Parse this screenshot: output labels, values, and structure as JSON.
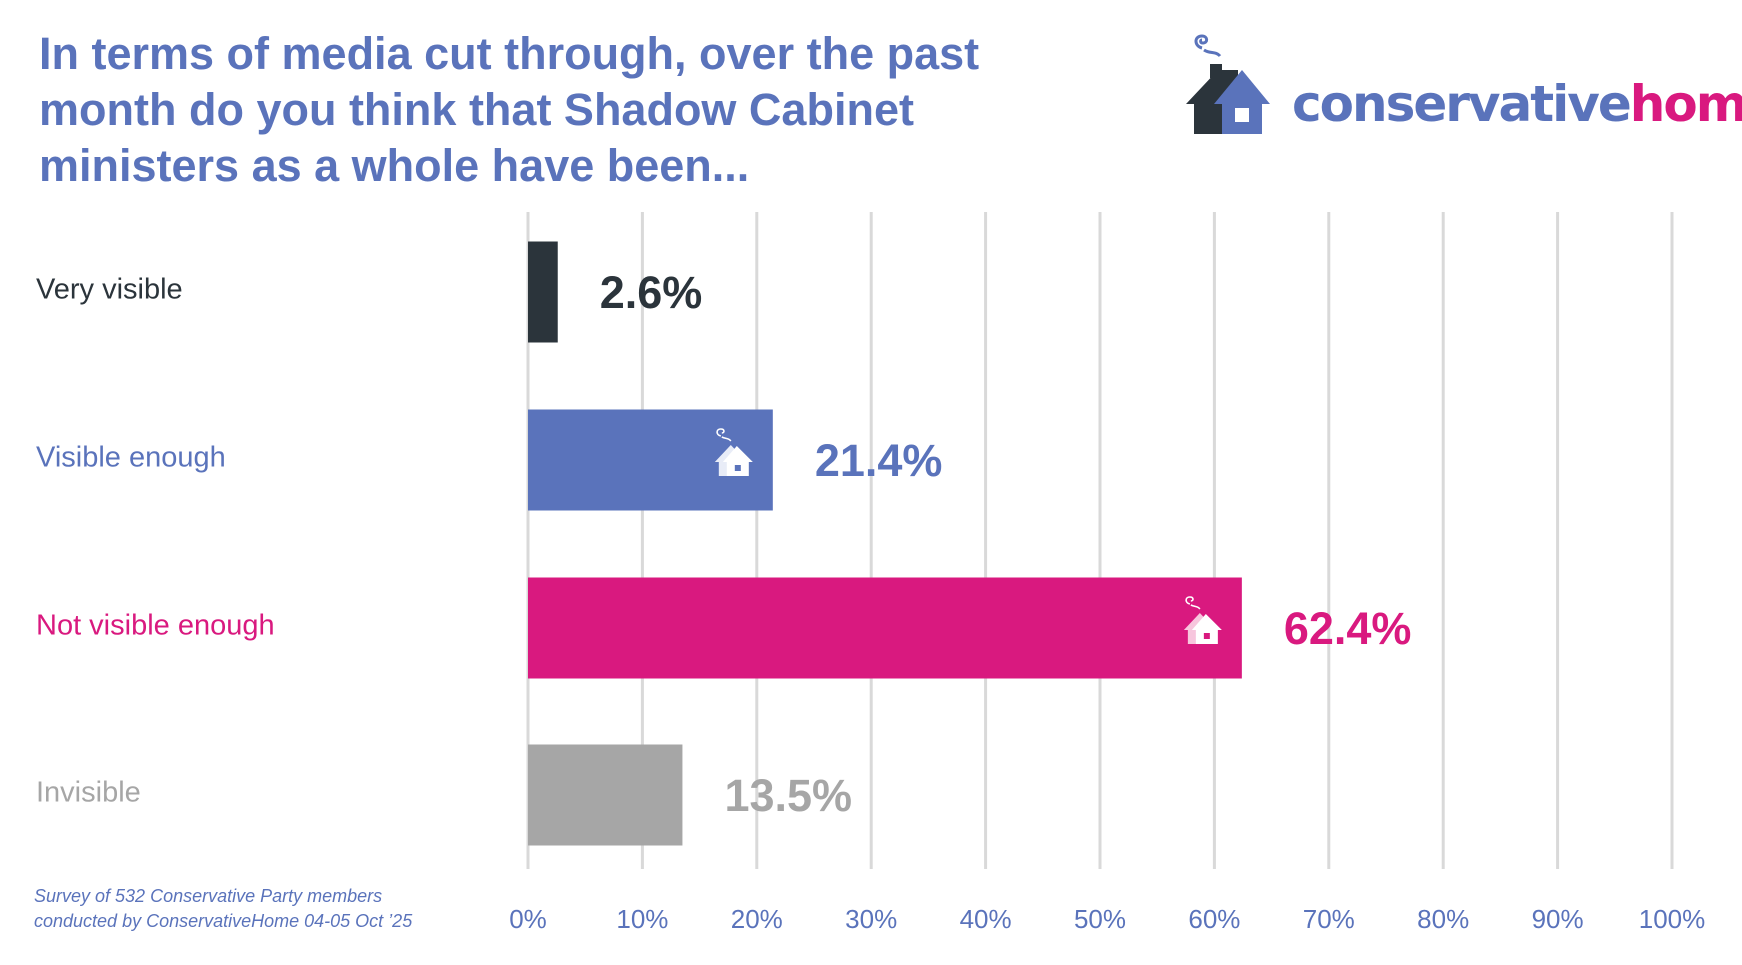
{
  "title": "In terms of media cut through, over the past month do you think that Shadow Cabinet ministers as a whole have been...",
  "logo": {
    "part1": "conservative",
    "part2": "home",
    "color1": "#5a73bb",
    "color2": "#d9197f"
  },
  "footnote": {
    "line1": "Survey of 532 Conservative Party members",
    "line2": "conducted by ConservativeHome 04-05 Oct ’25"
  },
  "chart_data": {
    "type": "bar",
    "orientation": "horizontal",
    "categories": [
      "Very visible",
      "Visible enough",
      "Not visible enough",
      "Invisible"
    ],
    "values": [
      2.6,
      21.4,
      62.4,
      13.5
    ],
    "value_labels": [
      "2.6%",
      "21.4%",
      "62.4%",
      "13.5%"
    ],
    "colors": [
      "#2b343b",
      "#5a73bb",
      "#d9197f",
      "#a6a6a6"
    ],
    "xlim": [
      0,
      100
    ],
    "xticks": [
      0,
      10,
      20,
      30,
      40,
      50,
      60,
      70,
      80,
      90,
      100
    ],
    "xtick_labels": [
      "0%",
      "10%",
      "20%",
      "30%",
      "40%",
      "50%",
      "60%",
      "70%",
      "80%",
      "90%",
      "100%"
    ],
    "grid": true
  }
}
